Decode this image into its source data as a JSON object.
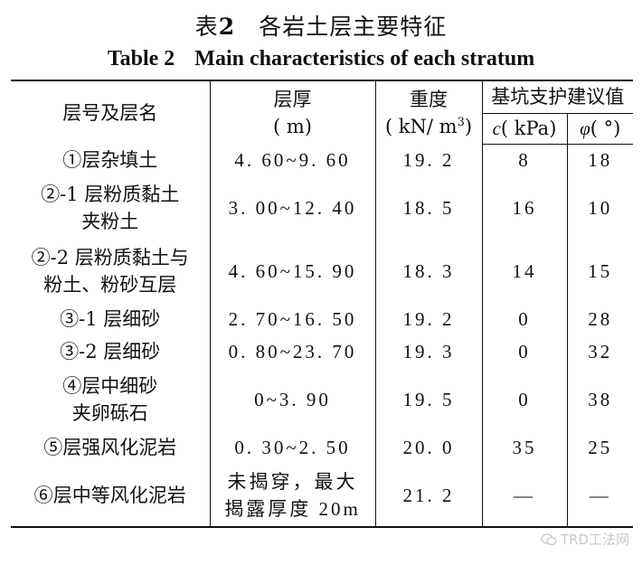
{
  "title_cn_label": "表",
  "title_cn_num": "2",
  "title_cn_text": "各岩土层主要特征",
  "title_en_label": "Table 2",
  "title_en_text": "Main characteristics of each stratum",
  "headers": {
    "layer": "层号及层名",
    "thickness": "层厚",
    "thickness_unit": "( m)",
    "weight": "重度",
    "weight_unit_pre": "( kN/ m",
    "weight_unit_sup": "3",
    "weight_unit_post": ")",
    "support": "基坑支护建议值",
    "c_sym": "c",
    "c_unit": "( kPa)",
    "phi_sym": "φ",
    "phi_unit": "( °)"
  },
  "rows": [
    {
      "layer": [
        "①层杂填土"
      ],
      "thickness": [
        "4. 60~9. 60"
      ],
      "weight": "19. 2",
      "c": "8",
      "phi": "18"
    },
    {
      "layer": [
        "②-1 层粉质黏土",
        "夹粉土"
      ],
      "thickness": [
        "3. 00~12. 40"
      ],
      "weight": "18. 5",
      "c": "16",
      "phi": "10"
    },
    {
      "layer": [
        "②-2 层粉质黏土与",
        "粉土、粉砂互层"
      ],
      "thickness": [
        "4. 60~15. 90"
      ],
      "weight": "18. 3",
      "c": "14",
      "phi": "15"
    },
    {
      "layer": [
        "③-1 层细砂"
      ],
      "thickness": [
        "2. 70~16. 50"
      ],
      "weight": "19. 2",
      "c": "0",
      "phi": "28"
    },
    {
      "layer": [
        "③-2 层细砂"
      ],
      "thickness": [
        "0. 80~23. 70"
      ],
      "weight": "19. 3",
      "c": "0",
      "phi": "32"
    },
    {
      "layer": [
        "④层中细砂",
        "夹卵砾石"
      ],
      "thickness": [
        "0~3. 90"
      ],
      "weight": "19. 5",
      "c": "0",
      "phi": "38"
    },
    {
      "layer": [
        "⑤层强风化泥岩"
      ],
      "thickness": [
        "0. 30~2. 50"
      ],
      "weight": "20. 0",
      "c": "35",
      "phi": "25"
    },
    {
      "layer": [
        "⑥层中等风化泥岩"
      ],
      "thickness": [
        "未揭穿，最大",
        "揭露厚度 20m"
      ],
      "weight": "21. 2",
      "c": "—",
      "phi": "—"
    }
  ],
  "watermark": "TRD工法网"
}
